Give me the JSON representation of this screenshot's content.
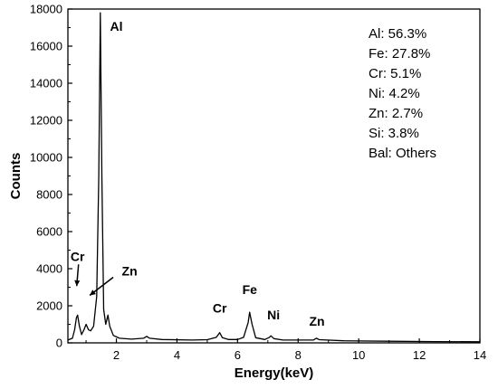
{
  "chart_data": {
    "type": "line",
    "title": "",
    "xlabel": "Energy(keV)",
    "ylabel": "Counts",
    "xlim": [
      0.4,
      14
    ],
    "ylim": [
      0,
      18000
    ],
    "x_ticks": [
      2,
      4,
      6,
      8,
      10,
      12,
      14
    ],
    "y_ticks": [
      0,
      2000,
      4000,
      6000,
      8000,
      10000,
      12000,
      14000,
      16000,
      18000
    ],
    "grid": false,
    "line_color": "#000000",
    "series": [
      {
        "points": [
          [
            0.4,
            150
          ],
          [
            0.55,
            250
          ],
          [
            0.62,
            700
          ],
          [
            0.68,
            1350
          ],
          [
            0.72,
            1500
          ],
          [
            0.78,
            900
          ],
          [
            0.85,
            450
          ],
          [
            0.93,
            700
          ],
          [
            1.0,
            1000
          ],
          [
            1.08,
            700
          ],
          [
            1.15,
            650
          ],
          [
            1.25,
            900
          ],
          [
            1.35,
            2500
          ],
          [
            1.42,
            9000
          ],
          [
            1.47,
            17800
          ],
          [
            1.52,
            9000
          ],
          [
            1.58,
            1800
          ],
          [
            1.65,
            1000
          ],
          [
            1.72,
            1500
          ],
          [
            1.78,
            900
          ],
          [
            1.9,
            400
          ],
          [
            2.1,
            250
          ],
          [
            2.5,
            200
          ],
          [
            2.9,
            250
          ],
          [
            3.0,
            350
          ],
          [
            3.1,
            250
          ],
          [
            3.5,
            180
          ],
          [
            4.5,
            150
          ],
          [
            5.0,
            170
          ],
          [
            5.3,
            300
          ],
          [
            5.41,
            550
          ],
          [
            5.5,
            280
          ],
          [
            5.7,
            180
          ],
          [
            6.0,
            180
          ],
          [
            6.2,
            300
          ],
          [
            6.35,
            1100
          ],
          [
            6.4,
            1650
          ],
          [
            6.48,
            1000
          ],
          [
            6.6,
            280
          ],
          [
            6.9,
            180
          ],
          [
            7.05,
            300
          ],
          [
            7.1,
            380
          ],
          [
            7.2,
            230
          ],
          [
            7.5,
            150
          ],
          [
            8.0,
            150
          ],
          [
            8.5,
            150
          ],
          [
            8.6,
            250
          ],
          [
            8.7,
            170
          ],
          [
            9.5,
            110
          ],
          [
            11.0,
            90
          ],
          [
            12.5,
            70
          ],
          [
            14.0,
            60
          ]
        ]
      }
    ],
    "peak_labels": [
      {
        "text": "Al",
        "x": 1.49,
        "y": 17800
      },
      {
        "text": "Cr",
        "x": 0.72,
        "y": 1500
      },
      {
        "text": "Zn",
        "x": 1.0,
        "y": 1000
      },
      {
        "text": "Cr",
        "x": 5.41,
        "y": 550
      },
      {
        "text": "Fe",
        "x": 6.4,
        "y": 1650
      },
      {
        "text": "Ni",
        "x": 7.1,
        "y": 380
      },
      {
        "text": "Zn",
        "x": 8.62,
        "y": 250
      }
    ],
    "composition": [
      "Al: 56.3%",
      "Fe: 27.8%",
      "Cr: 5.1%",
      "Ni: 4.2%",
      "Zn: 2.7%",
      "Si: 3.8%",
      "Bal: Others"
    ],
    "legend_placement": "top-right"
  }
}
